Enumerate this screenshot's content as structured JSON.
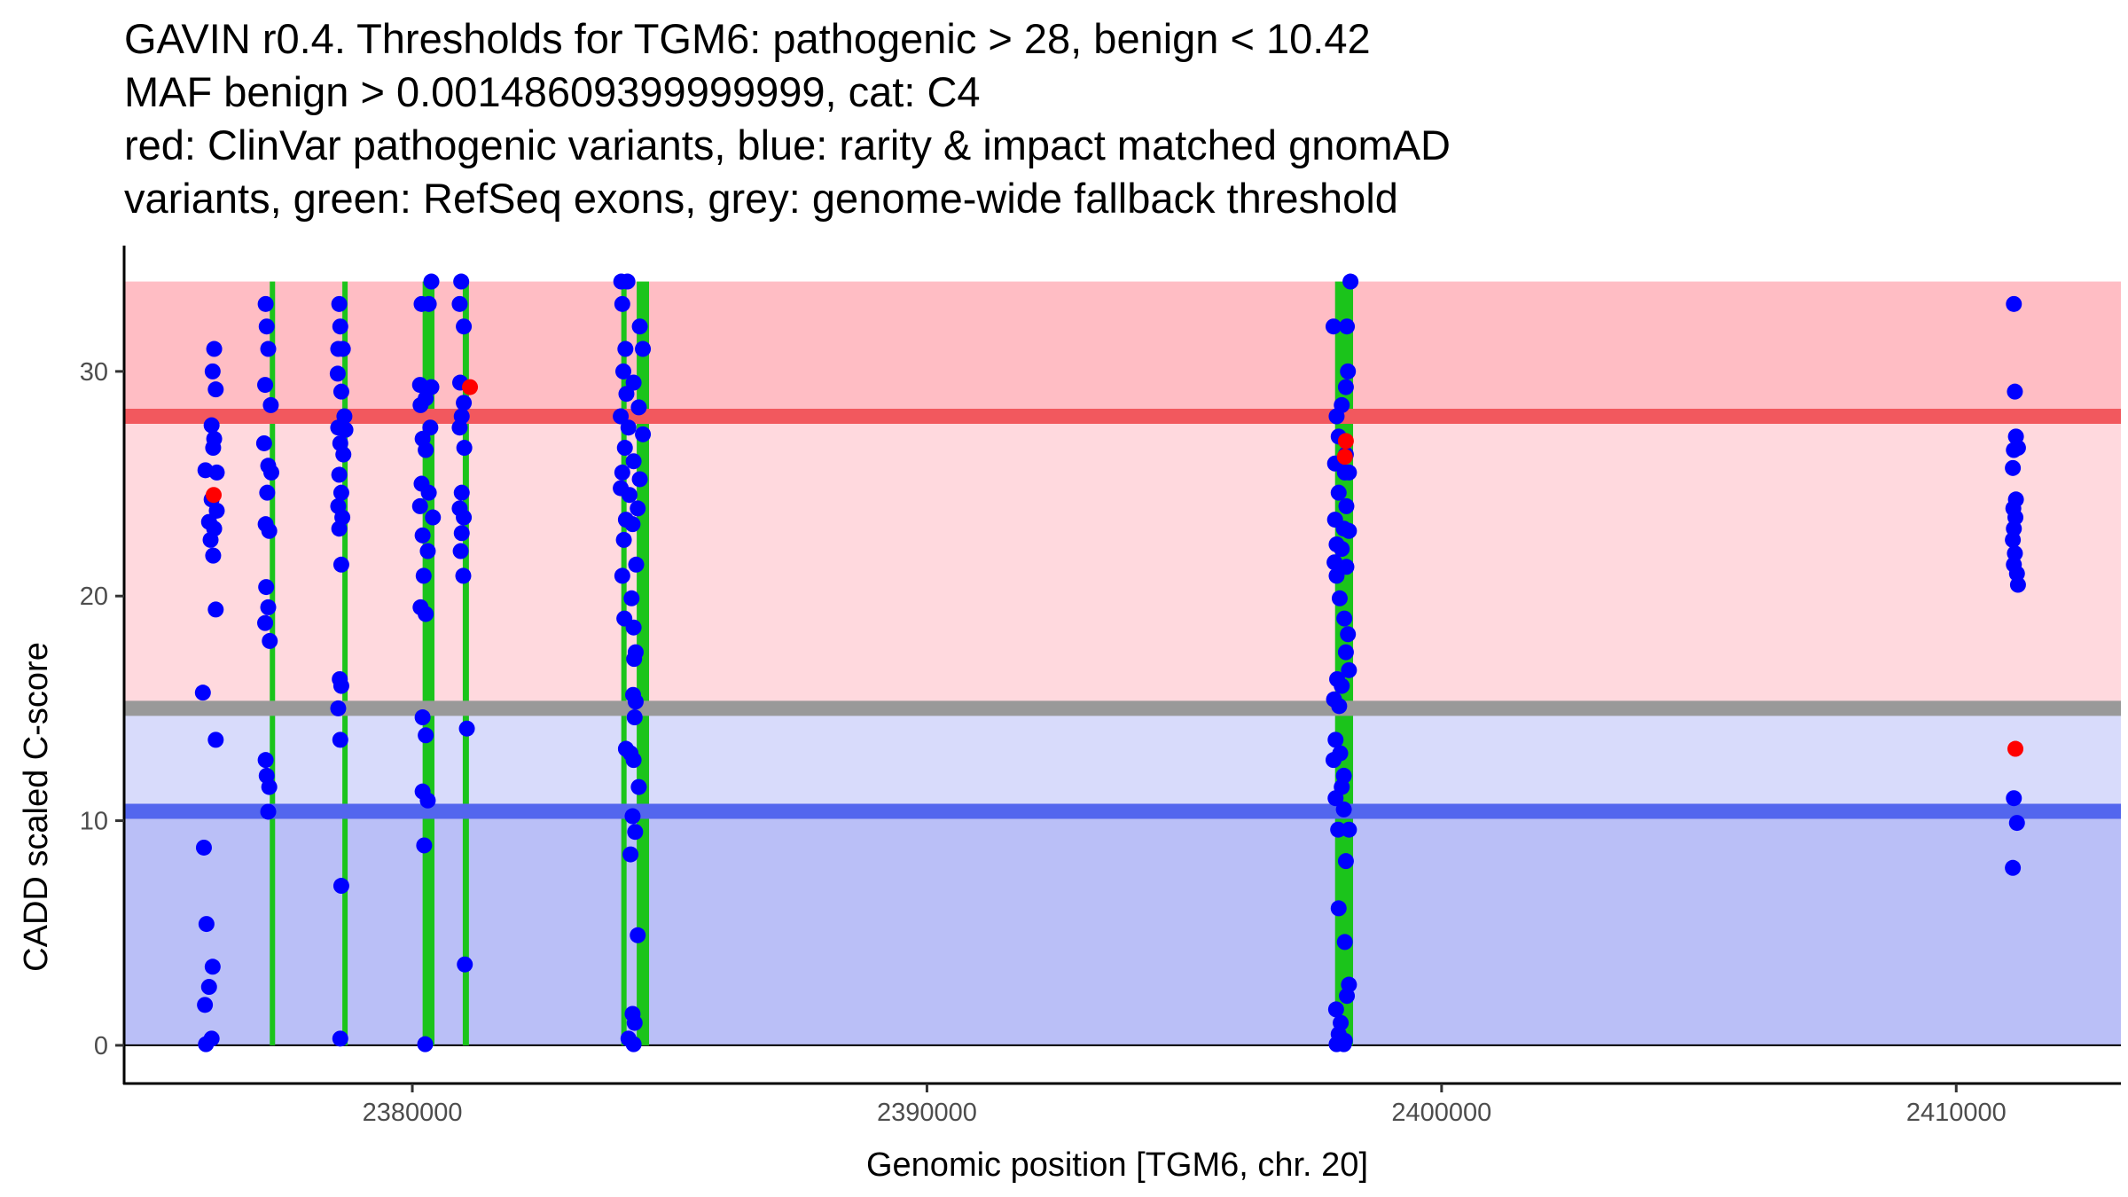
{
  "title": {
    "line1": "GAVIN r0.4. Thresholds for TGM6: pathogenic > 28, benign < 10.42",
    "line2": "MAF benign > 0.00148609399999999, cat: C4",
    "line3": "red: ClinVar pathogenic variants, blue: rarity & impact matched gnomAD",
    "line4": "variants, green: RefSeq exons, grey: genome-wide fallback threshold"
  },
  "colors": {
    "pathogenic_band": "#ffbdc4",
    "pathogenic_zone": "#ffd9de",
    "benign_zone_upper": "#d8dbfb",
    "benign_band": "#babff7",
    "pathogenic_line": "#f2585e",
    "benign_line": "#5366ee",
    "fallback_line": "#999999",
    "exon": "#1bc41b",
    "gnomad_point": "#0000ff",
    "clinvar_point": "#ff0000"
  },
  "chart_data": {
    "type": "scatter",
    "xlabel": "Genomic position [TGM6, chr. 20]",
    "ylabel": "CADD scaled C-score",
    "xlim": [
      2374400,
      2413200
    ],
    "ylim": [
      -1.7,
      35.6
    ],
    "xticks": [
      2380000,
      2390000,
      2400000,
      2410000
    ],
    "yticks": [
      0,
      10,
      20,
      30
    ],
    "bands": [
      {
        "name": "pathogenic-band",
        "y0": 28,
        "y1": 34,
        "color_key": "pathogenic_band"
      },
      {
        "name": "pathogenic-zone",
        "y0": 15,
        "y1": 28,
        "color_key": "pathogenic_zone"
      },
      {
        "name": "benign-zone-upper",
        "y0": 10.42,
        "y1": 15,
        "color_key": "benign_zone_upper"
      },
      {
        "name": "benign-band",
        "y0": 0,
        "y1": 10.42,
        "color_key": "benign_band"
      }
    ],
    "thresholds": [
      {
        "name": "pathogenic-threshold-line",
        "y": 28,
        "color_key": "pathogenic_line"
      },
      {
        "name": "benign-threshold-line",
        "y": 10.42,
        "color_key": "benign_line"
      },
      {
        "name": "fallback-threshold-line",
        "y": 15,
        "color_key": "fallback_line"
      }
    ],
    "exons": [
      {
        "start": 2377230,
        "end": 2377330
      },
      {
        "start": 2378640,
        "end": 2378740
      },
      {
        "start": 2380200,
        "end": 2380430
      },
      {
        "start": 2380980,
        "end": 2381100
      },
      {
        "start": 2384060,
        "end": 2384160
      },
      {
        "start": 2384360,
        "end": 2384600
      },
      {
        "start": 2397930,
        "end": 2398280
      }
    ],
    "series": [
      {
        "name": "gnomAD",
        "color_key": "gnomad_point",
        "points": [
          [
            2376150,
            31.0
          ],
          [
            2376120,
            30.0
          ],
          [
            2376180,
            29.2
          ],
          [
            2376100,
            27.6
          ],
          [
            2376150,
            27.0
          ],
          [
            2376130,
            26.6
          ],
          [
            2375980,
            25.6
          ],
          [
            2376200,
            25.5
          ],
          [
            2376100,
            24.3
          ],
          [
            2376200,
            23.8
          ],
          [
            2376050,
            23.3
          ],
          [
            2376150,
            23.0
          ],
          [
            2376080,
            22.5
          ],
          [
            2376130,
            21.8
          ],
          [
            2376180,
            19.4
          ],
          [
            2375930,
            15.7
          ],
          [
            2376180,
            13.6
          ],
          [
            2375950,
            8.8
          ],
          [
            2376000,
            5.4
          ],
          [
            2376120,
            3.5
          ],
          [
            2376050,
            2.6
          ],
          [
            2375970,
            1.8
          ],
          [
            2376100,
            0.3
          ],
          [
            2375990,
            0.05
          ],
          [
            2377150,
            33.0
          ],
          [
            2377170,
            32.0
          ],
          [
            2377200,
            31.0
          ],
          [
            2377140,
            29.4
          ],
          [
            2377250,
            28.5
          ],
          [
            2377120,
            26.8
          ],
          [
            2377200,
            25.8
          ],
          [
            2377260,
            25.5
          ],
          [
            2377180,
            24.6
          ],
          [
            2377150,
            23.2
          ],
          [
            2377220,
            22.9
          ],
          [
            2377160,
            20.4
          ],
          [
            2377200,
            19.5
          ],
          [
            2377140,
            18.8
          ],
          [
            2377230,
            18.0
          ],
          [
            2377150,
            12.7
          ],
          [
            2377170,
            12.0
          ],
          [
            2377220,
            11.5
          ],
          [
            2377200,
            10.4
          ],
          [
            2378580,
            33.0
          ],
          [
            2378600,
            32.0
          ],
          [
            2378560,
            31.0
          ],
          [
            2378650,
            31.0
          ],
          [
            2378550,
            29.9
          ],
          [
            2378620,
            29.1
          ],
          [
            2378680,
            28.0
          ],
          [
            2378560,
            27.5
          ],
          [
            2378700,
            27.4
          ],
          [
            2378600,
            26.8
          ],
          [
            2378660,
            26.3
          ],
          [
            2378580,
            25.4
          ],
          [
            2378620,
            24.6
          ],
          [
            2378560,
            24.0
          ],
          [
            2378640,
            23.5
          ],
          [
            2378580,
            23.0
          ],
          [
            2378620,
            21.4
          ],
          [
            2378590,
            16.3
          ],
          [
            2378620,
            16.0
          ],
          [
            2378560,
            15.0
          ],
          [
            2378600,
            13.6
          ],
          [
            2378620,
            7.1
          ],
          [
            2378600,
            0.3
          ],
          [
            2380180,
            33.0
          ],
          [
            2380370,
            34.0
          ],
          [
            2380320,
            33.0
          ],
          [
            2380150,
            29.4
          ],
          [
            2380370,
            29.3
          ],
          [
            2380260,
            28.8
          ],
          [
            2380160,
            28.5
          ],
          [
            2380350,
            27.5
          ],
          [
            2380200,
            27.0
          ],
          [
            2380260,
            26.5
          ],
          [
            2380180,
            25.0
          ],
          [
            2380320,
            24.6
          ],
          [
            2380150,
            24.0
          ],
          [
            2380400,
            23.5
          ],
          [
            2380200,
            22.7
          ],
          [
            2380300,
            22.0
          ],
          [
            2380220,
            20.9
          ],
          [
            2380160,
            19.5
          ],
          [
            2380260,
            19.2
          ],
          [
            2380200,
            14.6
          ],
          [
            2380260,
            13.8
          ],
          [
            2380200,
            11.3
          ],
          [
            2380300,
            10.9
          ],
          [
            2380230,
            8.9
          ],
          [
            2380250,
            0.05
          ],
          [
            2380950,
            34.0
          ],
          [
            2380920,
            33.0
          ],
          [
            2381000,
            32.0
          ],
          [
            2380930,
            29.5
          ],
          [
            2381000,
            28.6
          ],
          [
            2380960,
            28.0
          ],
          [
            2380920,
            27.5
          ],
          [
            2381010,
            26.6
          ],
          [
            2380960,
            24.6
          ],
          [
            2380920,
            23.9
          ],
          [
            2381000,
            23.5
          ],
          [
            2380960,
            22.8
          ],
          [
            2380940,
            22.0
          ],
          [
            2380990,
            20.9
          ],
          [
            2381060,
            14.1
          ],
          [
            2381020,
            3.6
          ],
          [
            2384060,
            34.0
          ],
          [
            2384180,
            34.0
          ],
          [
            2384080,
            33.0
          ],
          [
            2384420,
            32.0
          ],
          [
            2384140,
            31.0
          ],
          [
            2384480,
            31.0
          ],
          [
            2384100,
            30.0
          ],
          [
            2384300,
            29.5
          ],
          [
            2384160,
            29.0
          ],
          [
            2384400,
            28.4
          ],
          [
            2384050,
            28.0
          ],
          [
            2384200,
            27.5
          ],
          [
            2384480,
            27.2
          ],
          [
            2384130,
            26.6
          ],
          [
            2384300,
            26.0
          ],
          [
            2384080,
            25.5
          ],
          [
            2384420,
            25.2
          ],
          [
            2384050,
            24.8
          ],
          [
            2384220,
            24.5
          ],
          [
            2384380,
            23.9
          ],
          [
            2384150,
            23.4
          ],
          [
            2384280,
            23.2
          ],
          [
            2384110,
            22.5
          ],
          [
            2384350,
            21.4
          ],
          [
            2384080,
            20.9
          ],
          [
            2384260,
            19.9
          ],
          [
            2384120,
            19.0
          ],
          [
            2384300,
            18.6
          ],
          [
            2384340,
            17.5
          ],
          [
            2384310,
            17.2
          ],
          [
            2384290,
            15.6
          ],
          [
            2384340,
            15.3
          ],
          [
            2384320,
            14.6
          ],
          [
            2384150,
            13.2
          ],
          [
            2384240,
            13.0
          ],
          [
            2384300,
            12.7
          ],
          [
            2384400,
            11.5
          ],
          [
            2384280,
            10.2
          ],
          [
            2384330,
            9.5
          ],
          [
            2384240,
            8.5
          ],
          [
            2384380,
            4.9
          ],
          [
            2384280,
            1.4
          ],
          [
            2384320,
            1.0
          ],
          [
            2384200,
            0.3
          ],
          [
            2384300,
            0.05
          ],
          [
            2397900,
            32.0
          ],
          [
            2398160,
            32.0
          ],
          [
            2398180,
            30.0
          ],
          [
            2398140,
            29.3
          ],
          [
            2398060,
            28.5
          ],
          [
            2397960,
            28.0
          ],
          [
            2398000,
            27.1
          ],
          [
            2398140,
            26.3
          ],
          [
            2397930,
            25.9
          ],
          [
            2398120,
            25.5
          ],
          [
            2398200,
            25.5
          ],
          [
            2398000,
            24.6
          ],
          [
            2398150,
            24.0
          ],
          [
            2397930,
            23.4
          ],
          [
            2398100,
            23.0
          ],
          [
            2398200,
            22.9
          ],
          [
            2397960,
            22.3
          ],
          [
            2398060,
            22.1
          ],
          [
            2397920,
            21.5
          ],
          [
            2398150,
            21.3
          ],
          [
            2397960,
            20.9
          ],
          [
            2398020,
            19.9
          ],
          [
            2398110,
            19.0
          ],
          [
            2398180,
            18.3
          ],
          [
            2398140,
            17.5
          ],
          [
            2398200,
            16.7
          ],
          [
            2397970,
            16.3
          ],
          [
            2398060,
            16.0
          ],
          [
            2397910,
            15.4
          ],
          [
            2398010,
            15.1
          ],
          [
            2397940,
            13.6
          ],
          [
            2398030,
            13.0
          ],
          [
            2397900,
            12.7
          ],
          [
            2398100,
            12.0
          ],
          [
            2398060,
            11.5
          ],
          [
            2397940,
            11.0
          ],
          [
            2398100,
            10.5
          ],
          [
            2397990,
            9.6
          ],
          [
            2398200,
            9.6
          ],
          [
            2398140,
            8.2
          ],
          [
            2398000,
            6.1
          ],
          [
            2398120,
            4.6
          ],
          [
            2398200,
            2.7
          ],
          [
            2398160,
            2.2
          ],
          [
            2397950,
            1.6
          ],
          [
            2398040,
            1.0
          ],
          [
            2398000,
            0.5
          ],
          [
            2398120,
            0.2
          ],
          [
            2397960,
            0.05
          ],
          [
            2398100,
            0.05
          ],
          [
            2398230,
            34.0
          ],
          [
            2411120,
            33.0
          ],
          [
            2411140,
            29.1
          ],
          [
            2411160,
            27.1
          ],
          [
            2411200,
            26.6
          ],
          [
            2411120,
            26.5
          ],
          [
            2411100,
            25.7
          ],
          [
            2411160,
            24.3
          ],
          [
            2411110,
            23.9
          ],
          [
            2411150,
            23.5
          ],
          [
            2411120,
            23.0
          ],
          [
            2411100,
            22.5
          ],
          [
            2411140,
            21.9
          ],
          [
            2411120,
            21.4
          ],
          [
            2411180,
            21.0
          ],
          [
            2411200,
            20.5
          ],
          [
            2411120,
            11.0
          ],
          [
            2411180,
            9.9
          ],
          [
            2411100,
            7.9
          ]
        ]
      },
      {
        "name": "ClinVar pathogenic",
        "color_key": "clinvar_point",
        "points": [
          [
            2376140,
            24.5
          ],
          [
            2381120,
            29.3
          ],
          [
            2398140,
            26.9
          ],
          [
            2398120,
            26.2
          ],
          [
            2411150,
            13.2
          ]
        ]
      }
    ]
  }
}
